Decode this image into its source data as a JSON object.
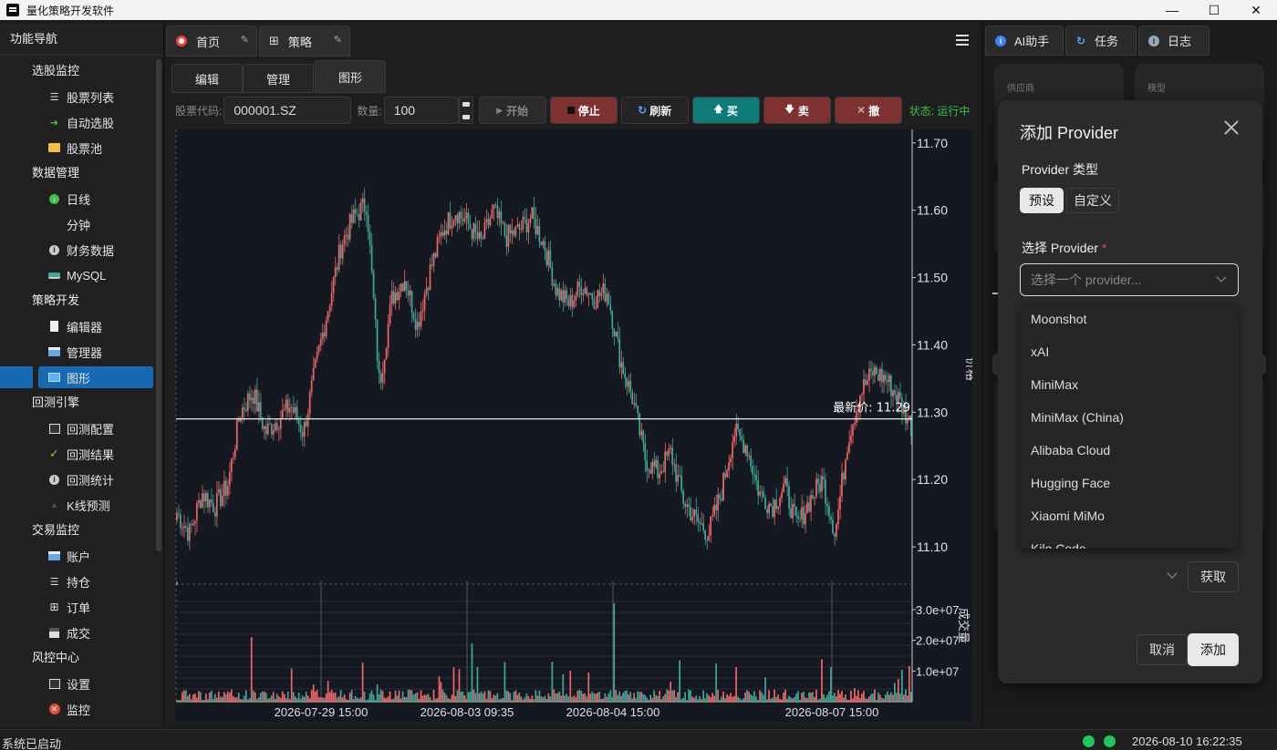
{
  "window": {
    "title": "量化策略开发软件",
    "controls": {
      "minimize": "—",
      "maximize": "☐",
      "close": "✕"
    }
  },
  "sidebar": {
    "title": "功能导航",
    "groups": [
      {
        "label": "选股监控",
        "items": [
          {
            "label": "股票列表",
            "icon": "list-icon"
          },
          {
            "label": "自动选股",
            "icon": "arrow-right-icon"
          },
          {
            "label": "股票池",
            "icon": "folder-icon"
          }
        ]
      },
      {
        "label": "数据管理",
        "items": [
          {
            "label": "日线",
            "icon": "download-icon"
          },
          {
            "label": "分钟",
            "icon": ""
          },
          {
            "label": "财务数据",
            "icon": "info-icon"
          },
          {
            "label": "MySQL",
            "icon": "database-icon"
          }
        ]
      },
      {
        "label": "策略开发",
        "items": [
          {
            "label": "编辑器",
            "icon": "document-icon"
          },
          {
            "label": "管理器",
            "icon": "card-icon"
          },
          {
            "label": "图形",
            "icon": "monitor-icon"
          }
        ]
      },
      {
        "label": "回测引擎",
        "items": [
          {
            "label": "回测配置",
            "icon": "config-icon"
          },
          {
            "label": "回测结果",
            "icon": "check-icon"
          },
          {
            "label": "回测统计",
            "icon": "info-icon"
          },
          {
            "label": "K线预测",
            "icon": "triangle-icon"
          }
        ]
      },
      {
        "label": "交易监控",
        "items": [
          {
            "label": "账户",
            "icon": "card-icon"
          },
          {
            "label": "持仓",
            "icon": "list-icon"
          },
          {
            "label": "订单",
            "icon": "grid-icon"
          },
          {
            "label": "成交",
            "icon": "save-icon"
          }
        ]
      },
      {
        "label": "风控中心",
        "items": [
          {
            "label": "设置",
            "icon": "settings-icon"
          },
          {
            "label": "监控",
            "icon": "alert-icon"
          }
        ]
      }
    ],
    "active_item": "图形"
  },
  "center": {
    "tabs": [
      {
        "label": "首页"
      },
      {
        "label": "策略"
      }
    ],
    "subtabs": [
      {
        "label": "编辑"
      },
      {
        "label": "管理"
      },
      {
        "label": "图形"
      }
    ],
    "active_subtab": "图形",
    "toolbar": {
      "code_label": "股票代码:",
      "code_value": "000001.SZ",
      "qty_label": "数量:",
      "qty_value": "100",
      "start_label": "开始",
      "stop_label": "停止",
      "refresh_label": "刷新",
      "buy_label": "买",
      "sell_label": "卖",
      "cancel_label": "撤",
      "status_text": "状态: 运行中"
    },
    "colors": {
      "up": "#f06767",
      "down": "#3fa89a",
      "buy": "#0e7b76",
      "sell": "#7d3131",
      "stop": "#7d3131"
    }
  },
  "chart_data": {
    "type": "candlestick",
    "ylabel": "价格",
    "volume_label": "成交量",
    "price_ticks": [
      "11.10",
      "11.20",
      "11.30",
      "11.40",
      "11.50",
      "11.60",
      "11.70"
    ],
    "ylim": [
      11.05,
      11.72
    ],
    "volume_ticks": [
      "1.0e+07",
      "2.0e+07",
      "3.0e+07"
    ],
    "x_ticks": [
      "2026-07-29 15:00",
      "2026-08-03 09:35",
      "2026-08-04 15:00",
      "2026-08-07 15:00"
    ],
    "last_price_label": "最新价: 11.29",
    "last_price": 11.29,
    "anchor_closes": [
      11.15,
      11.12,
      11.18,
      11.16,
      11.19,
      11.3,
      11.33,
      11.27,
      11.29,
      11.31,
      11.27,
      11.37,
      11.46,
      11.55,
      11.59,
      11.61,
      11.34,
      11.47,
      11.5,
      11.43,
      11.51,
      11.57,
      11.6,
      11.58,
      11.55,
      11.6,
      11.56,
      11.57,
      11.59,
      11.55,
      11.48,
      11.46,
      11.49,
      11.47,
      11.48,
      11.38,
      11.32,
      11.23,
      11.21,
      11.24,
      11.17,
      11.14,
      11.12,
      11.18,
      11.27,
      11.25,
      11.18,
      11.16,
      11.19,
      11.13,
      11.17,
      11.2,
      11.12,
      11.26,
      11.33,
      11.36,
      11.35,
      11.32,
      11.28
    ]
  },
  "right_panel": {
    "tabs": [
      {
        "label": "AI助手",
        "icon": "info-icon"
      },
      {
        "label": "任务",
        "icon": "refresh-icon"
      },
      {
        "label": "日志",
        "icon": "info-icon"
      }
    ],
    "cards": [
      {
        "label": "供应商"
      },
      {
        "label": "模型"
      }
    ]
  },
  "modal": {
    "title": "添加 Provider",
    "type_label": "Provider 类型",
    "type_options": [
      "预设",
      "自定义"
    ],
    "type_selected": "预设",
    "select_label": "选择 Provider",
    "required_mark": "*",
    "select_placeholder": "选择一个 provider...",
    "options": [
      "Moonshot",
      "xAI",
      "MiniMax",
      "MiniMax (China)",
      "Alibaba Cloud",
      "Hugging Face",
      "Xiaomi MiMo",
      "Kilo Code"
    ],
    "fetch_label": "获取",
    "cancel_label": "取消",
    "add_label": "添加"
  },
  "statusbar": {
    "message": "系统已启动",
    "datetime": "2026-08-10 16:22:35"
  }
}
